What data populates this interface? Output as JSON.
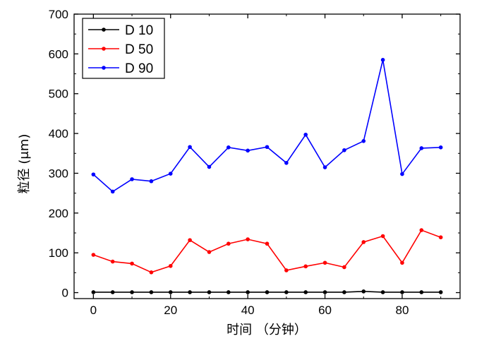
{
  "chart_data": {
    "type": "line",
    "title": "",
    "xlabel": "时间 （分钟）",
    "ylabel": "粒径 (μm)",
    "xlim": [
      -5,
      95
    ],
    "ylim": [
      -15,
      700
    ],
    "x_ticks": [
      0,
      20,
      40,
      60,
      80
    ],
    "y_ticks": [
      0,
      100,
      200,
      300,
      400,
      500,
      600,
      700
    ],
    "grid": false,
    "legend_position": "top-left",
    "x": [
      0,
      5,
      10,
      15,
      20,
      25,
      30,
      35,
      40,
      45,
      50,
      55,
      60,
      65,
      70,
      75,
      80,
      85,
      90
    ],
    "series": [
      {
        "name": "D 10",
        "color": "#000000",
        "values": [
          1,
          1,
          1,
          1,
          1,
          1,
          1,
          1,
          1,
          1,
          1,
          1,
          1,
          1,
          3,
          1,
          1,
          1,
          1
        ]
      },
      {
        "name": "D 50",
        "color": "#ff0000",
        "values": [
          95,
          78,
          73,
          51,
          67,
          132,
          102,
          123,
          134,
          123,
          56,
          66,
          75,
          64,
          127,
          142,
          75,
          157,
          139
        ]
      },
      {
        "name": "D 90",
        "color": "#0000ff",
        "values": [
          297,
          254,
          285,
          280,
          299,
          366,
          316,
          365,
          357,
          366,
          326,
          397,
          315,
          358,
          381,
          585,
          298,
          363,
          365
        ]
      }
    ]
  }
}
